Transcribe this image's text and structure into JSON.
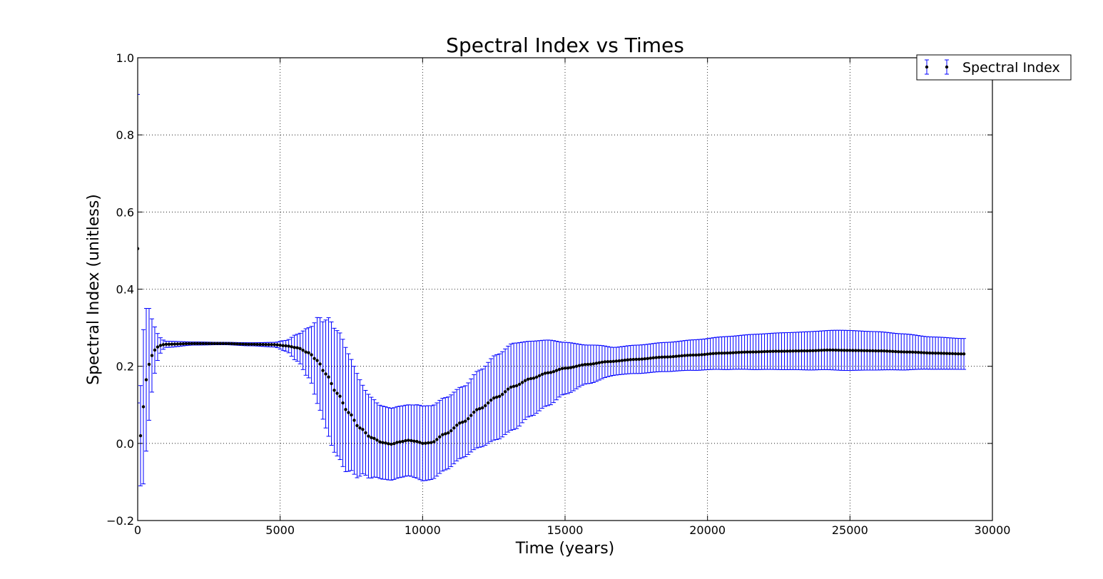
{
  "chart_data": {
    "type": "scatter",
    "title": "Spectral Index vs Times",
    "xlabel": "Time (years)",
    "ylabel": "Spectral Index (unitless)",
    "xlim": [
      0,
      30000
    ],
    "ylim": [
      -0.2,
      1.0
    ],
    "xticks": [
      0,
      5000,
      10000,
      15000,
      20000,
      25000,
      30000
    ],
    "xtick_labels": [
      "0",
      "5000",
      "10000",
      "15000",
      "20000",
      "25000",
      "30000"
    ],
    "yticks": [
      -0.2,
      0.0,
      0.2,
      0.4,
      0.6,
      0.8,
      1.0
    ],
    "ytick_labels": [
      "−0.2",
      "0.0",
      "0.2",
      "0.4",
      "0.6",
      "0.8",
      "1.0"
    ],
    "grid": true,
    "legend_position": "top-right",
    "series": [
      {
        "name": "Spectral Index",
        "marker_color": "#000000",
        "errorbar_color": "#0000ff",
        "x_start": 0,
        "x_step": 100,
        "count": 291,
        "y_knots": [
          [
            0,
            0.505
          ],
          [
            100,
            0.02
          ],
          [
            200,
            0.095
          ],
          [
            300,
            0.165
          ],
          [
            400,
            0.205
          ],
          [
            500,
            0.228
          ],
          [
            600,
            0.242
          ],
          [
            700,
            0.25
          ],
          [
            800,
            0.254
          ],
          [
            900,
            0.256
          ],
          [
            1000,
            0.257
          ],
          [
            2000,
            0.259
          ],
          [
            3000,
            0.259
          ],
          [
            4000,
            0.257
          ],
          [
            4800,
            0.256
          ],
          [
            5200,
            0.253
          ],
          [
            5600,
            0.248
          ],
          [
            6000,
            0.235
          ],
          [
            6300,
            0.215
          ],
          [
            6600,
            0.18
          ],
          [
            7000,
            0.13
          ],
          [
            7400,
            0.08
          ],
          [
            7800,
            0.04
          ],
          [
            8200,
            0.015
          ],
          [
            8600,
            0.002
          ],
          [
            8900,
            -0.002
          ],
          [
            9200,
            0.004
          ],
          [
            9500,
            0.008
          ],
          [
            9800,
            0.005
          ],
          [
            10000,
            0.0
          ],
          [
            10300,
            0.002
          ],
          [
            10800,
            0.025
          ],
          [
            11400,
            0.055
          ],
          [
            12000,
            0.09
          ],
          [
            12600,
            0.12
          ],
          [
            13200,
            0.148
          ],
          [
            13800,
            0.168
          ],
          [
            14400,
            0.183
          ],
          [
            15000,
            0.195
          ],
          [
            15800,
            0.205
          ],
          [
            16500,
            0.212
          ],
          [
            17500,
            0.218
          ],
          [
            18500,
            0.224
          ],
          [
            19500,
            0.229
          ],
          [
            20500,
            0.234
          ],
          [
            21500,
            0.237
          ],
          [
            22500,
            0.239
          ],
          [
            23500,
            0.24
          ],
          [
            24300,
            0.242
          ],
          [
            25000,
            0.241
          ],
          [
            26000,
            0.24
          ],
          [
            27000,
            0.237
          ],
          [
            28000,
            0.234
          ],
          [
            29000,
            0.232
          ]
        ],
        "err_knots": [
          [
            0,
            0.4
          ],
          [
            100,
            0.13
          ],
          [
            200,
            0.2
          ],
          [
            300,
            0.185
          ],
          [
            400,
            0.145
          ],
          [
            500,
            0.095
          ],
          [
            600,
            0.06
          ],
          [
            700,
            0.035
          ],
          [
            800,
            0.02
          ],
          [
            900,
            0.012
          ],
          [
            1000,
            0.008
          ],
          [
            2000,
            0.004
          ],
          [
            3000,
            0.003
          ],
          [
            4000,
            0.004
          ],
          [
            4800,
            0.006
          ],
          [
            5200,
            0.014
          ],
          [
            5600,
            0.035
          ],
          [
            6000,
            0.065
          ],
          [
            6400,
            0.12
          ],
          [
            6800,
            0.16
          ],
          [
            7200,
            0.165
          ],
          [
            7600,
            0.14
          ],
          [
            8000,
            0.11
          ],
          [
            8500,
            0.095
          ],
          [
            9000,
            0.093
          ],
          [
            9500,
            0.092
          ],
          [
            10000,
            0.097
          ],
          [
            10500,
            0.095
          ],
          [
            11000,
            0.093
          ],
          [
            11500,
            0.092
          ],
          [
            12000,
            0.1
          ],
          [
            12600,
            0.11
          ],
          [
            13200,
            0.112
          ],
          [
            13800,
            0.097
          ],
          [
            14400,
            0.085
          ],
          [
            15000,
            0.067
          ],
          [
            15800,
            0.05
          ],
          [
            16800,
            0.036
          ],
          [
            17800,
            0.037
          ],
          [
            18800,
            0.038
          ],
          [
            19800,
            0.04
          ],
          [
            20800,
            0.043
          ],
          [
            21800,
            0.046
          ],
          [
            22800,
            0.048
          ],
          [
            23800,
            0.05
          ],
          [
            24800,
            0.052
          ],
          [
            25800,
            0.05
          ],
          [
            26800,
            0.047
          ],
          [
            27800,
            0.042
          ],
          [
            29000,
            0.04
          ]
        ]
      }
    ]
  }
}
